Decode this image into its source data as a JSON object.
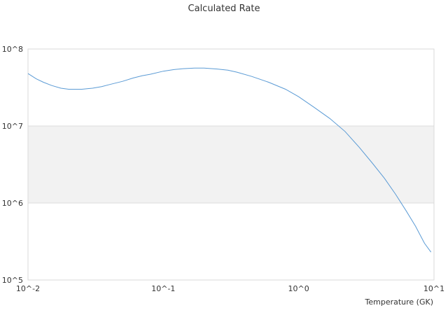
{
  "chart_data": {
    "type": "line",
    "title": "Calculated Rate",
    "xlabel": "Temperature (GK)",
    "ylabel": "",
    "x_scale": "log",
    "y_scale": "log",
    "xlim": [
      0.01,
      10
    ],
    "ylim": [
      100000,
      100000000
    ],
    "x_tick_labels": [
      "10^-2",
      "10^-1",
      "10^0",
      "10^1"
    ],
    "y_tick_labels": [
      "10^5",
      "10^6",
      "10^7",
      "10^8"
    ],
    "grid": "horizontal",
    "alternating_band_color": "#f2f2f2",
    "series": [
      {
        "color": "#5b9bd5",
        "x": [
          0.01,
          0.0115,
          0.013,
          0.015,
          0.0175,
          0.02,
          0.025,
          0.03,
          0.035,
          0.04,
          0.05,
          0.06,
          0.07,
          0.08,
          0.1,
          0.12,
          0.14,
          0.17,
          0.2,
          0.25,
          0.3,
          0.35,
          0.45,
          0.6,
          0.8,
          1.0,
          1.3,
          1.7,
          2.2,
          2.8,
          3.5,
          4.3,
          5.2,
          6.2,
          7.3,
          8.5,
          9.5
        ],
        "y": [
          48000000,
          41000000,
          37000000,
          33500000,
          31000000,
          30000000,
          30000000,
          31000000,
          32500000,
          34500000,
          38000000,
          42000000,
          45000000,
          47000000,
          51500000,
          54000000,
          55500000,
          56500000,
          56500000,
          55000000,
          53000000,
          50000000,
          44000000,
          37000000,
          30000000,
          24000000,
          17500000,
          12500000,
          8500000,
          5300000,
          3300000,
          2100000,
          1300000,
          800000,
          500000,
          300000,
          230000
        ]
      }
    ]
  }
}
